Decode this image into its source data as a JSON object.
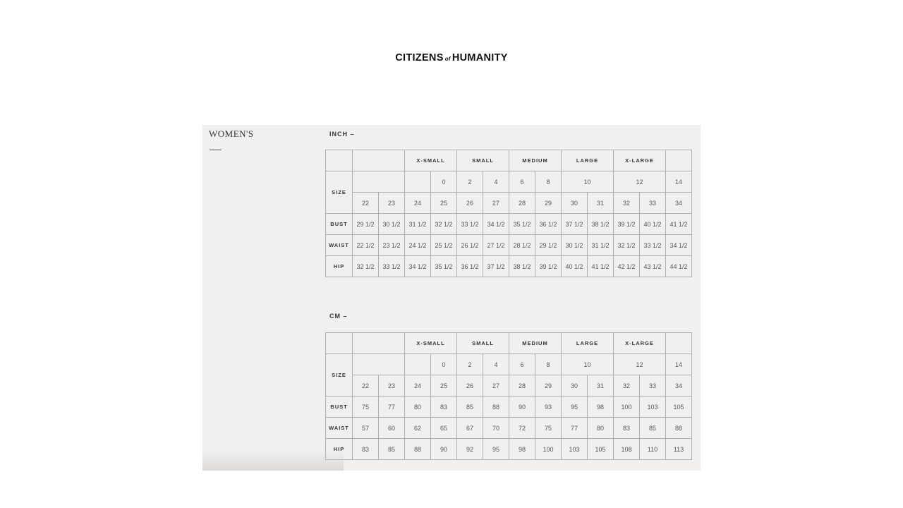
{
  "brand": {
    "left": "CITIZENS",
    "of": "of",
    "right": "HUMANITY"
  },
  "section_title": "WOMEN'S",
  "charts": [
    {
      "unit_label": "INCH –",
      "size_label": "SIZE",
      "size_groups": [
        {
          "label": "",
          "span": 2
        },
        {
          "label": "X-SMALL",
          "span": 2
        },
        {
          "label": "SMALL",
          "span": 2
        },
        {
          "label": "MEDIUM",
          "span": 2
        },
        {
          "label": "LARGE",
          "span": 2
        },
        {
          "label": "X-LARGE",
          "span": 2
        },
        {
          "label": "",
          "span": 1
        }
      ],
      "us_sizes": [
        {
          "label": "",
          "span": 2
        },
        {
          "label": "",
          "span": 1
        },
        {
          "label": "0",
          "span": 1
        },
        {
          "label": "2",
          "span": 1
        },
        {
          "label": "4",
          "span": 1
        },
        {
          "label": "6",
          "span": 1
        },
        {
          "label": "8",
          "span": 1
        },
        {
          "label": "10",
          "span": 2
        },
        {
          "label": "12",
          "span": 2
        },
        {
          "label": "14",
          "span": 1
        }
      ],
      "denim_sizes": [
        "22",
        "23",
        "24",
        "25",
        "26",
        "27",
        "28",
        "29",
        "30",
        "31",
        "32",
        "33",
        "34"
      ],
      "rows": [
        {
          "label": "BUST",
          "values": [
            "29 1/2",
            "30 1/2",
            "31 1/2",
            "32 1/2",
            "33 1/2",
            "34 1/2",
            "35 1/2",
            "36 1/2",
            "37 1/2",
            "38 1/2",
            "39 1/2",
            "40 1/2",
            "41 1/2"
          ]
        },
        {
          "label": "WAIST",
          "values": [
            "22 1/2",
            "23 1/2",
            "24 1/2",
            "25 1/2",
            "26 1/2",
            "27 1/2",
            "28 1/2",
            "29 1/2",
            "30 1/2",
            "31 1/2",
            "32 1/2",
            "33 1/2",
            "34 1/2"
          ]
        },
        {
          "label": "HIP",
          "values": [
            "32 1/2",
            "33 1/2",
            "34 1/2",
            "35 1/2",
            "36 1/2",
            "37 1/2",
            "38 1/2",
            "39 1/2",
            "40 1/2",
            "41 1/2",
            "42 1/2",
            "43 1/2",
            "44 1/2"
          ]
        }
      ]
    },
    {
      "unit_label": "CM –",
      "size_label": "SIZE",
      "size_groups": [
        {
          "label": "",
          "span": 2
        },
        {
          "label": "X-SMALL",
          "span": 2
        },
        {
          "label": "SMALL",
          "span": 2
        },
        {
          "label": "MEDIUM",
          "span": 2
        },
        {
          "label": "LARGE",
          "span": 2
        },
        {
          "label": "X-LARGE",
          "span": 2
        },
        {
          "label": "",
          "span": 1
        }
      ],
      "us_sizes": [
        {
          "label": "",
          "span": 2
        },
        {
          "label": "",
          "span": 1
        },
        {
          "label": "0",
          "span": 1
        },
        {
          "label": "2",
          "span": 1
        },
        {
          "label": "4",
          "span": 1
        },
        {
          "label": "6",
          "span": 1
        },
        {
          "label": "8",
          "span": 1
        },
        {
          "label": "10",
          "span": 2
        },
        {
          "label": "12",
          "span": 2
        },
        {
          "label": "14",
          "span": 1
        }
      ],
      "denim_sizes": [
        "22",
        "23",
        "24",
        "25",
        "26",
        "27",
        "28",
        "29",
        "30",
        "31",
        "32",
        "33",
        "34"
      ],
      "rows": [
        {
          "label": "BUST",
          "values": [
            "75",
            "77",
            "80",
            "83",
            "85",
            "88",
            "90",
            "93",
            "95",
            "98",
            "100",
            "103",
            "105"
          ]
        },
        {
          "label": "WAIST",
          "values": [
            "57",
            "60",
            "62",
            "65",
            "67",
            "70",
            "72",
            "75",
            "77",
            "80",
            "83",
            "85",
            "88"
          ]
        },
        {
          "label": "HIP",
          "values": [
            "83",
            "85",
            "88",
            "90",
            "92",
            "95",
            "98",
            "100",
            "103",
            "105",
            "108",
            "110",
            "113"
          ]
        }
      ]
    }
  ]
}
